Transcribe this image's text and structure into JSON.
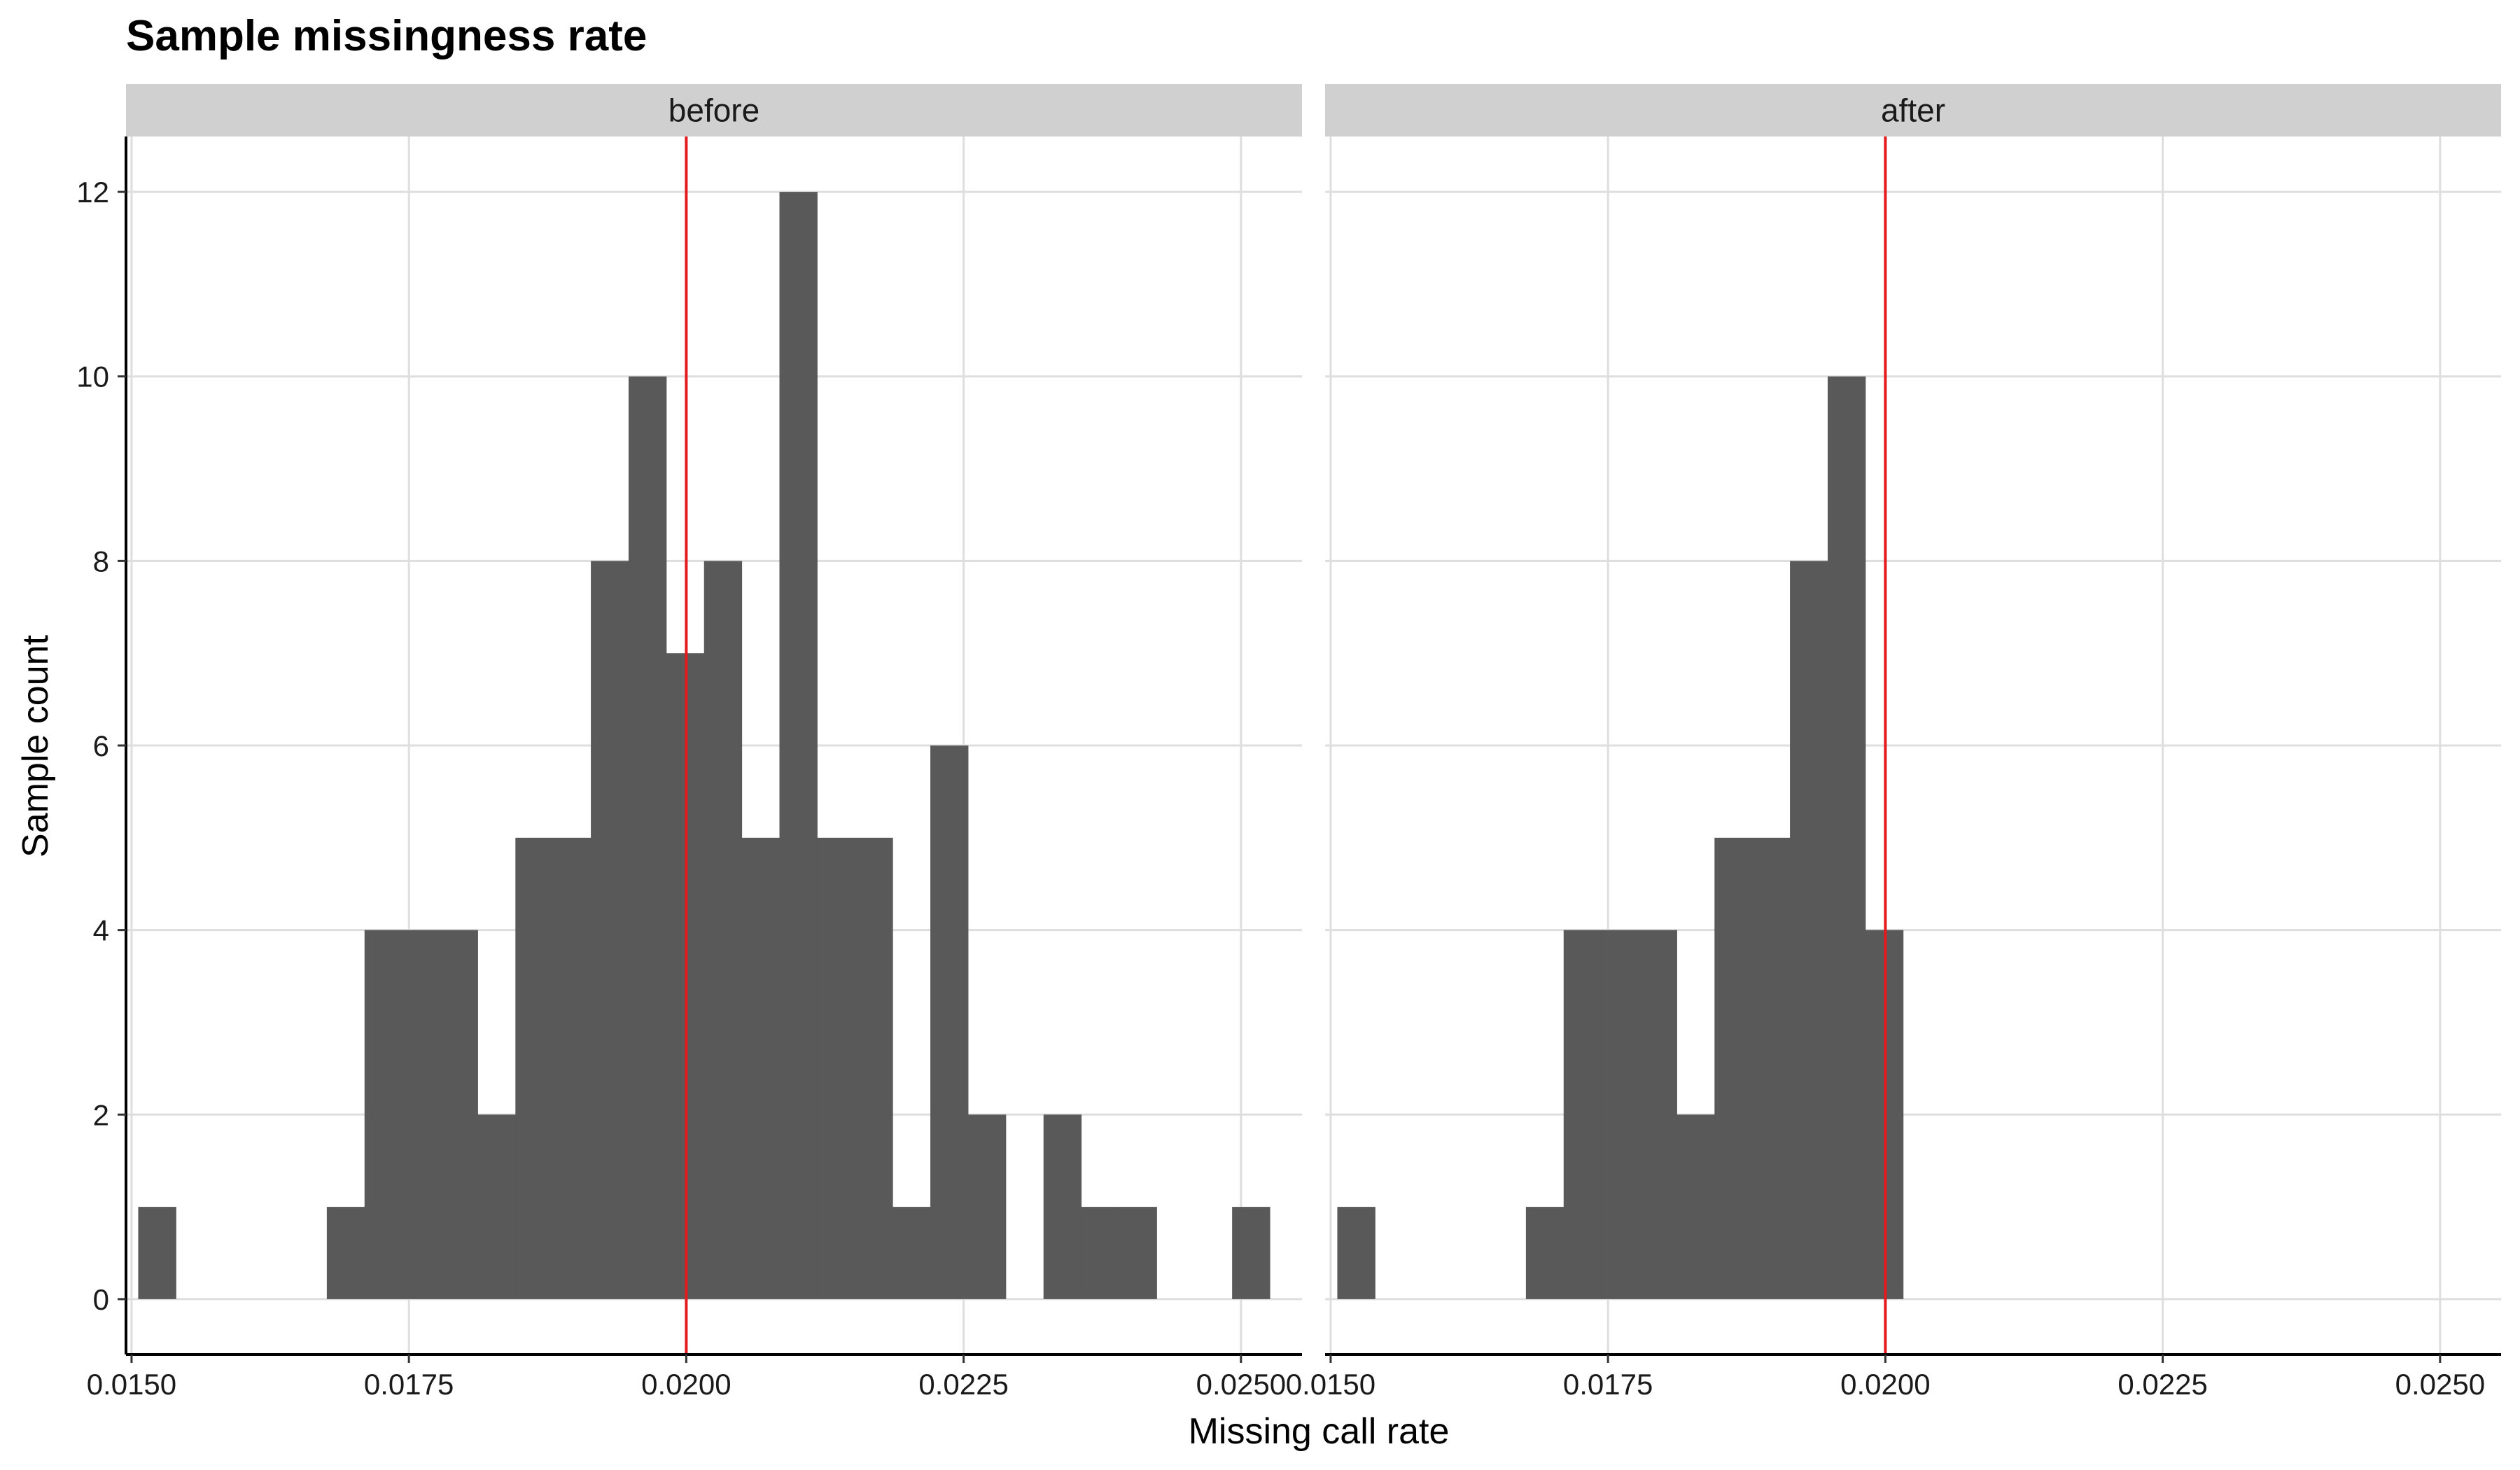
{
  "chart_data": {
    "type": "bar",
    "title": "Sample missingness rate",
    "xlabel": "Missing call rate",
    "ylabel": "Sample count",
    "xlim": [
      0.01495,
      0.02555
    ],
    "ylim": [
      -0.6,
      12.6
    ],
    "x_ticks": [
      0.015,
      0.0175,
      0.02,
      0.0225,
      0.025
    ],
    "x_tick_labels": [
      "0.0150",
      "0.0175",
      "0.0200",
      "0.0225",
      "0.0250"
    ],
    "y_ticks": [
      0,
      2,
      4,
      6,
      8,
      10,
      12
    ],
    "y_tick_labels": [
      "0",
      "2",
      "4",
      "6",
      "8",
      "10",
      "12"
    ],
    "grid": true,
    "bar_color": "#595959",
    "reference_line": {
      "x": 0.02,
      "color": "#e41a1c"
    },
    "bin_edges": [
      0.01506,
      0.0154,
      0.01574,
      0.01608,
      0.01642,
      0.01676,
      0.0171,
      0.01744,
      0.01778,
      0.01812,
      0.01846,
      0.0188,
      0.01914,
      0.01948,
      0.01982,
      0.02016,
      0.0205,
      0.02084,
      0.02118,
      0.02152,
      0.02186,
      0.0222,
      0.02254,
      0.02288,
      0.02322,
      0.02356,
      0.0239,
      0.02424,
      0.02458,
      0.02492,
      0.02526
    ],
    "panels": [
      {
        "name": "before",
        "counts": [
          1,
          0,
          0,
          0,
          0,
          1,
          4,
          4,
          4,
          2,
          5,
          5,
          8,
          10,
          7,
          8,
          5,
          12,
          5,
          5,
          1,
          6,
          2,
          0,
          2,
          1,
          1,
          0,
          0,
          1
        ]
      },
      {
        "name": "after",
        "counts": [
          1,
          0,
          0,
          0,
          0,
          1,
          4,
          4,
          4,
          2,
          5,
          5,
          8,
          10,
          4,
          0,
          0,
          0,
          0,
          0,
          0,
          0,
          0,
          0,
          0,
          0,
          0,
          0,
          0,
          0
        ]
      }
    ]
  }
}
